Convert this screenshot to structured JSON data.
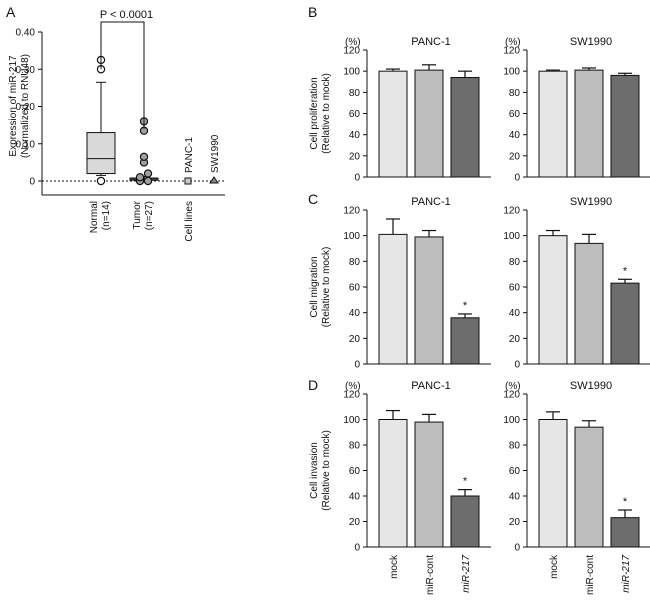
{
  "panels": {
    "A": "A",
    "B": "B",
    "C": "C",
    "D": "D"
  },
  "chart_data": [
    {
      "panel": "A",
      "type": "box",
      "ylabel_lines": [
        "Expression of miR-217",
        "(Normalized to RNU48)"
      ],
      "ylim": [
        0,
        0.4
      ],
      "yticks": [
        "0",
        "0.10",
        "0.20",
        "0.30",
        "0.40"
      ],
      "annotation": "P < 0.0001",
      "groups": [
        {
          "label": "Normal",
          "sub": "(n=14)",
          "min": 0.015,
          "q1": 0.02,
          "median": 0.06,
          "q3": 0.13,
          "max": 0.265,
          "outliers": [
            0.0,
            0.3,
            0.325
          ]
        },
        {
          "label": "Tumor",
          "sub": "(n=27)",
          "min": 0.0,
          "q1": 0.002,
          "median": 0.005,
          "q3": 0.008,
          "max": 0.012,
          "outliers": [
            0.0,
            0.0,
            0.01,
            0.02,
            0.05,
            0.065,
            0.135,
            0.16
          ]
        }
      ],
      "cell_lines": {
        "label": "Cell lines",
        "points": [
          {
            "name": "PANC-1",
            "value": 0.0
          },
          {
            "name": "SW1990",
            "value": 0.0
          }
        ]
      }
    },
    {
      "panel": "B",
      "type": "bar",
      "title": "PANC-1",
      "unit": "(%)",
      "ylabel_lines": [
        "Cell proliferation",
        "(Relative to mock)"
      ],
      "ylim": [
        0,
        120
      ],
      "categories": [
        "mock",
        "miR-cont",
        "miR-217"
      ],
      "values": [
        100,
        101,
        94
      ],
      "errors": [
        2,
        5,
        6
      ],
      "significant": [
        false,
        false,
        false
      ]
    },
    {
      "panel": "B",
      "type": "bar",
      "title": "SW1990",
      "unit": "(%)",
      "ylim": [
        0,
        120
      ],
      "categories": [
        "mock",
        "miR-cont",
        "miR-217"
      ],
      "values": [
        100,
        101,
        96
      ],
      "errors": [
        1,
        2,
        2
      ],
      "significant": [
        false,
        false,
        false
      ]
    },
    {
      "panel": "C",
      "type": "bar",
      "title": "PANC-1",
      "unit": "",
      "ylabel_lines": [
        "Cell migration",
        "(Relative to mock)"
      ],
      "ylim": [
        0,
        120
      ],
      "categories": [
        "mock",
        "miR-cont",
        "miR-217"
      ],
      "values": [
        101,
        99,
        36
      ],
      "errors": [
        12,
        5,
        3
      ],
      "significant": [
        false,
        false,
        true
      ]
    },
    {
      "panel": "C",
      "type": "bar",
      "title": "SW1990",
      "unit": "",
      "ylim": [
        0,
        120
      ],
      "categories": [
        "mock",
        "miR-cont",
        "miR-217"
      ],
      "values": [
        100,
        94,
        63
      ],
      "errors": [
        4,
        7,
        3
      ],
      "significant": [
        false,
        false,
        true
      ]
    },
    {
      "panel": "D",
      "type": "bar",
      "title": "PANC-1",
      "unit": "(%)",
      "ylabel_lines": [
        "Cell invasion",
        "(Relative to mock)"
      ],
      "ylim": [
        0,
        120
      ],
      "categories": [
        "mock",
        "miR-cont",
        "miR-217"
      ],
      "values": [
        100,
        98,
        40
      ],
      "errors": [
        7,
        6,
        5
      ],
      "significant": [
        false,
        false,
        true
      ]
    },
    {
      "panel": "D",
      "type": "bar",
      "title": "SW1990",
      "unit": "(%)",
      "ylim": [
        0,
        120
      ],
      "categories": [
        "mock",
        "miR-cont",
        "miR-217"
      ],
      "values": [
        100,
        94,
        23
      ],
      "errors": [
        6,
        5,
        6
      ],
      "significant": [
        false,
        false,
        true
      ]
    }
  ],
  "yticks_bar": [
    "0",
    "20",
    "40",
    "60",
    "80",
    "100",
    "120"
  ],
  "star": "*",
  "colors": {
    "bar1": "#e6e6e6",
    "bar2": "#bdbdbd",
    "bar3": "#6d6d6d",
    "box": "#d9d9d9",
    "tumor_dot": "#a0a0a0"
  }
}
